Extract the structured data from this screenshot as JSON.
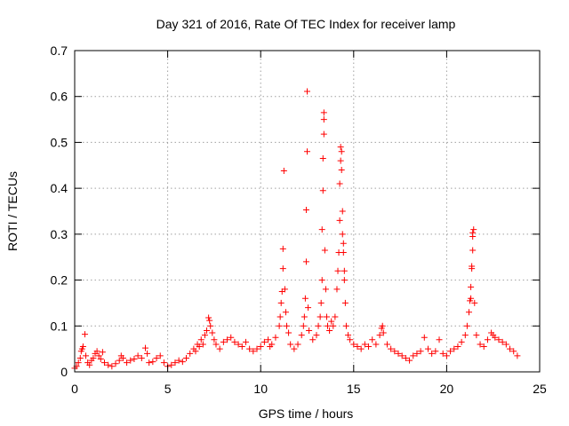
{
  "chart_data": {
    "type": "scatter",
    "title": "Day 321 of 2016, Rate Of TEC Index for receiver lamp",
    "xlabel": "GPS time / hours",
    "ylabel": "ROTI / TECUs",
    "xlim": [
      0,
      25
    ],
    "ylim": [
      0,
      0.7
    ],
    "xticks": [
      0,
      5,
      10,
      15,
      20,
      25
    ],
    "xtick_labels": [
      "0",
      "5",
      "10",
      "15",
      "20",
      "25"
    ],
    "yticks": [
      0,
      0.1,
      0.2,
      0.3,
      0.4,
      0.5,
      0.6,
      0.7
    ],
    "ytick_labels": [
      "0",
      "0.1",
      "0.2",
      "0.3",
      "0.4",
      "0.5",
      "0.6",
      "0.7"
    ],
    "grid": true,
    "marker": "plus",
    "color": "#ff0000",
    "series": [
      {
        "points": [
          [
            0.0,
            0.008
          ],
          [
            0.1,
            0.012
          ],
          [
            0.2,
            0.02
          ],
          [
            0.3,
            0.03
          ],
          [
            0.35,
            0.045
          ],
          [
            0.4,
            0.05
          ],
          [
            0.45,
            0.055
          ],
          [
            0.55,
            0.082
          ],
          [
            0.6,
            0.035
          ],
          [
            0.7,
            0.02
          ],
          [
            0.8,
            0.015
          ],
          [
            0.9,
            0.025
          ],
          [
            1.0,
            0.03
          ],
          [
            1.1,
            0.04
          ],
          [
            1.2,
            0.045
          ],
          [
            1.3,
            0.035
          ],
          [
            1.4,
            0.028
          ],
          [
            1.5,
            0.043
          ],
          [
            1.6,
            0.02
          ],
          [
            1.8,
            0.015
          ],
          [
            2.0,
            0.012
          ],
          [
            2.2,
            0.018
          ],
          [
            2.4,
            0.025
          ],
          [
            2.5,
            0.035
          ],
          [
            2.6,
            0.03
          ],
          [
            2.8,
            0.02
          ],
          [
            3.0,
            0.025
          ],
          [
            3.2,
            0.028
          ],
          [
            3.4,
            0.035
          ],
          [
            3.6,
            0.03
          ],
          [
            3.8,
            0.052
          ],
          [
            3.9,
            0.04
          ],
          [
            4.0,
            0.02
          ],
          [
            4.2,
            0.022
          ],
          [
            4.4,
            0.03
          ],
          [
            4.6,
            0.035
          ],
          [
            4.8,
            0.02
          ],
          [
            5.0,
            0.012
          ],
          [
            5.2,
            0.015
          ],
          [
            5.4,
            0.02
          ],
          [
            5.6,
            0.025
          ],
          [
            5.8,
            0.022
          ],
          [
            6.0,
            0.03
          ],
          [
            6.2,
            0.04
          ],
          [
            6.4,
            0.05
          ],
          [
            6.5,
            0.045
          ],
          [
            6.6,
            0.06
          ],
          [
            6.7,
            0.055
          ],
          [
            6.8,
            0.07
          ],
          [
            6.9,
            0.06
          ],
          [
            7.0,
            0.08
          ],
          [
            7.1,
            0.09
          ],
          [
            7.2,
            0.118
          ],
          [
            7.25,
            0.112
          ],
          [
            7.3,
            0.1
          ],
          [
            7.4,
            0.085
          ],
          [
            7.5,
            0.07
          ],
          [
            7.6,
            0.06
          ],
          [
            7.8,
            0.05
          ],
          [
            8.0,
            0.065
          ],
          [
            8.2,
            0.07
          ],
          [
            8.4,
            0.075
          ],
          [
            8.6,
            0.065
          ],
          [
            8.8,
            0.06
          ],
          [
            9.0,
            0.055
          ],
          [
            9.2,
            0.065
          ],
          [
            9.4,
            0.05
          ],
          [
            9.6,
            0.045
          ],
          [
            9.8,
            0.05
          ],
          [
            10.0,
            0.055
          ],
          [
            10.2,
            0.065
          ],
          [
            10.4,
            0.07
          ],
          [
            10.5,
            0.055
          ],
          [
            10.6,
            0.06
          ],
          [
            10.8,
            0.075
          ],
          [
            11.0,
            0.1
          ],
          [
            11.05,
            0.12
          ],
          [
            11.1,
            0.15
          ],
          [
            11.15,
            0.175
          ],
          [
            11.2,
            0.225
          ],
          [
            11.2,
            0.268
          ],
          [
            11.25,
            0.438
          ],
          [
            11.3,
            0.18
          ],
          [
            11.35,
            0.13
          ],
          [
            11.4,
            0.1
          ],
          [
            11.5,
            0.085
          ],
          [
            11.6,
            0.06
          ],
          [
            11.8,
            0.05
          ],
          [
            12.0,
            0.06
          ],
          [
            12.2,
            0.08
          ],
          [
            12.3,
            0.1
          ],
          [
            12.35,
            0.12
          ],
          [
            12.4,
            0.16
          ],
          [
            12.45,
            0.24
          ],
          [
            12.45,
            0.353
          ],
          [
            12.5,
            0.48
          ],
          [
            12.5,
            0.611
          ],
          [
            12.55,
            0.14
          ],
          [
            12.6,
            0.09
          ],
          [
            12.8,
            0.07
          ],
          [
            13.0,
            0.08
          ],
          [
            13.1,
            0.1
          ],
          [
            13.2,
            0.12
          ],
          [
            13.25,
            0.15
          ],
          [
            13.3,
            0.2
          ],
          [
            13.3,
            0.31
          ],
          [
            13.35,
            0.395
          ],
          [
            13.35,
            0.465
          ],
          [
            13.4,
            0.518
          ],
          [
            13.4,
            0.55
          ],
          [
            13.4,
            0.565
          ],
          [
            13.45,
            0.265
          ],
          [
            13.5,
            0.18
          ],
          [
            13.55,
            0.12
          ],
          [
            13.6,
            0.1
          ],
          [
            13.7,
            0.09
          ],
          [
            13.8,
            0.11
          ],
          [
            13.9,
            0.1
          ],
          [
            14.0,
            0.12
          ],
          [
            14.1,
            0.18
          ],
          [
            14.15,
            0.22
          ],
          [
            14.2,
            0.26
          ],
          [
            14.25,
            0.33
          ],
          [
            14.25,
            0.41
          ],
          [
            14.3,
            0.46
          ],
          [
            14.3,
            0.49
          ],
          [
            14.35,
            0.48
          ],
          [
            14.35,
            0.44
          ],
          [
            14.4,
            0.35
          ],
          [
            14.4,
            0.3
          ],
          [
            14.45,
            0.28
          ],
          [
            14.45,
            0.26
          ],
          [
            14.5,
            0.22
          ],
          [
            14.5,
            0.2
          ],
          [
            14.55,
            0.15
          ],
          [
            14.6,
            0.1
          ],
          [
            14.7,
            0.08
          ],
          [
            14.8,
            0.07
          ],
          [
            15.0,
            0.06
          ],
          [
            15.2,
            0.055
          ],
          [
            15.4,
            0.05
          ],
          [
            15.6,
            0.06
          ],
          [
            15.8,
            0.055
          ],
          [
            16.0,
            0.07
          ],
          [
            16.2,
            0.06
          ],
          [
            16.4,
            0.08
          ],
          [
            16.5,
            0.095
          ],
          [
            16.55,
            0.1
          ],
          [
            16.6,
            0.085
          ],
          [
            16.8,
            0.06
          ],
          [
            17.0,
            0.05
          ],
          [
            17.2,
            0.045
          ],
          [
            17.4,
            0.04
          ],
          [
            17.6,
            0.035
          ],
          [
            17.8,
            0.03
          ],
          [
            18.0,
            0.025
          ],
          [
            18.2,
            0.035
          ],
          [
            18.4,
            0.04
          ],
          [
            18.6,
            0.045
          ],
          [
            18.8,
            0.075
          ],
          [
            19.0,
            0.05
          ],
          [
            19.2,
            0.04
          ],
          [
            19.4,
            0.045
          ],
          [
            19.6,
            0.07
          ],
          [
            19.8,
            0.04
          ],
          [
            20.0,
            0.035
          ],
          [
            20.2,
            0.045
          ],
          [
            20.4,
            0.05
          ],
          [
            20.6,
            0.055
          ],
          [
            20.8,
            0.065
          ],
          [
            21.0,
            0.08
          ],
          [
            21.1,
            0.1
          ],
          [
            21.2,
            0.13
          ],
          [
            21.25,
            0.155
          ],
          [
            21.3,
            0.16
          ],
          [
            21.3,
            0.185
          ],
          [
            21.35,
            0.225
          ],
          [
            21.35,
            0.23
          ],
          [
            21.4,
            0.265
          ],
          [
            21.4,
            0.295
          ],
          [
            21.4,
            0.303
          ],
          [
            21.45,
            0.31
          ],
          [
            21.5,
            0.15
          ],
          [
            21.6,
            0.08
          ],
          [
            21.8,
            0.06
          ],
          [
            22.0,
            0.055
          ],
          [
            22.2,
            0.07
          ],
          [
            22.4,
            0.085
          ],
          [
            22.5,
            0.08
          ],
          [
            22.6,
            0.075
          ],
          [
            22.8,
            0.07
          ],
          [
            23.0,
            0.065
          ],
          [
            23.2,
            0.06
          ],
          [
            23.4,
            0.05
          ],
          [
            23.6,
            0.045
          ],
          [
            23.8,
            0.035
          ]
        ]
      }
    ]
  }
}
